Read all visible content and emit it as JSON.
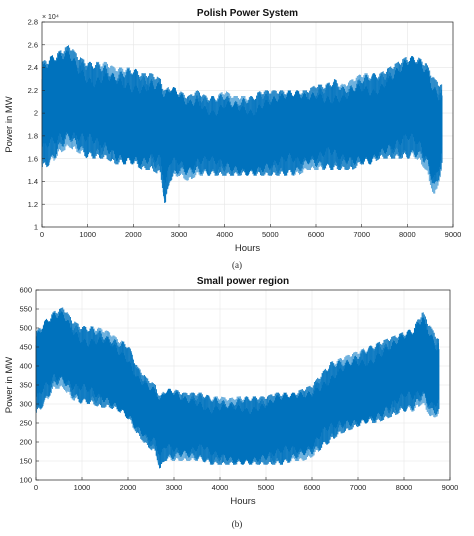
{
  "captions": {
    "a": "(a)",
    "b": "(b)"
  },
  "colors": {
    "series": "#0072bd",
    "series_light": "#4d9fd6",
    "grid": "#e6e6e6",
    "axis": "#262626"
  },
  "chart_data": [
    {
      "type": "line",
      "title": "Polish Power System",
      "xlabel": "Hours",
      "ylabel": "Power in MW",
      "y_exponent_label": "× 10⁴",
      "xlim": [
        0,
        9000
      ],
      "ylim": [
        1.0,
        2.8
      ],
      "y_scale_factor": 10000,
      "xticks": [
        0,
        1000,
        2000,
        3000,
        4000,
        5000,
        6000,
        7000,
        8000,
        9000
      ],
      "yticks": [
        1,
        1.2,
        1.4,
        1.6,
        1.8,
        2,
        2.2,
        2.4,
        2.6,
        2.8
      ],
      "grid": true,
      "series": [
        {
          "x": [
            0,
            200,
            400,
            600,
            800,
            1000,
            1200,
            1400,
            1600,
            1800,
            2000,
            2200,
            2400,
            2600,
            2700,
            2800,
            3000,
            3200,
            3400,
            3600,
            3800,
            4000,
            4200,
            4400,
            4600,
            4800,
            5000,
            5200,
            5400,
            5600,
            5800,
            6000,
            6200,
            6400,
            6600,
            6800,
            7000,
            7200,
            7400,
            7600,
            7800,
            8000,
            8200,
            8400,
            8600,
            8760
          ],
          "max": [
            2.45,
            2.5,
            2.55,
            2.6,
            2.5,
            2.45,
            2.45,
            2.45,
            2.4,
            2.4,
            2.4,
            2.35,
            2.35,
            2.3,
            2.2,
            2.25,
            2.2,
            2.15,
            2.2,
            2.15,
            2.15,
            2.2,
            2.15,
            2.15,
            2.15,
            2.2,
            2.2,
            2.2,
            2.2,
            2.2,
            2.2,
            2.25,
            2.25,
            2.3,
            2.25,
            2.3,
            2.35,
            2.35,
            2.35,
            2.4,
            2.45,
            2.5,
            2.5,
            2.45,
            2.3,
            2.25
          ],
          "min": [
            1.5,
            1.55,
            1.65,
            1.7,
            1.65,
            1.6,
            1.6,
            1.6,
            1.55,
            1.55,
            1.55,
            1.5,
            1.5,
            1.45,
            1.15,
            1.4,
            1.45,
            1.4,
            1.45,
            1.45,
            1.45,
            1.45,
            1.45,
            1.45,
            1.45,
            1.45,
            1.45,
            1.45,
            1.45,
            1.45,
            1.5,
            1.5,
            1.5,
            1.5,
            1.5,
            1.5,
            1.55,
            1.55,
            1.6,
            1.6,
            1.6,
            1.6,
            1.6,
            1.5,
            1.25,
            1.5
          ]
        }
      ]
    },
    {
      "type": "line",
      "title": "Small power region",
      "xlabel": "Hours",
      "ylabel": "Power in MW",
      "xlim": [
        0,
        9000
      ],
      "ylim": [
        100,
        600
      ],
      "xticks": [
        0,
        1000,
        2000,
        3000,
        4000,
        5000,
        6000,
        7000,
        8000,
        9000
      ],
      "yticks": [
        100,
        150,
        200,
        250,
        300,
        350,
        400,
        450,
        500,
        550,
        600
      ],
      "grid": true,
      "series": [
        {
          "x": [
            0,
            200,
            400,
            600,
            800,
            1000,
            1200,
            1400,
            1600,
            1800,
            2000,
            2200,
            2400,
            2600,
            2700,
            2800,
            3000,
            3200,
            3400,
            3600,
            3800,
            4000,
            4200,
            4400,
            4600,
            4800,
            5000,
            5200,
            5400,
            5600,
            5800,
            6000,
            6200,
            6400,
            6600,
            6800,
            7000,
            7200,
            7400,
            7600,
            7800,
            8000,
            8200,
            8400,
            8600,
            8760
          ],
          "max": [
            490,
            520,
            545,
            555,
            520,
            505,
            505,
            500,
            490,
            470,
            460,
            400,
            370,
            350,
            320,
            340,
            340,
            330,
            330,
            330,
            320,
            320,
            315,
            320,
            320,
            320,
            320,
            330,
            330,
            330,
            340,
            350,
            380,
            410,
            420,
            430,
            440,
            450,
            460,
            470,
            480,
            490,
            500,
            545,
            500,
            470
          ],
          "min": [
            270,
            300,
            340,
            340,
            310,
            300,
            300,
            290,
            290,
            280,
            260,
            220,
            190,
            170,
            120,
            150,
            150,
            150,
            150,
            150,
            140,
            140,
            140,
            140,
            140,
            140,
            140,
            140,
            140,
            150,
            150,
            160,
            180,
            200,
            220,
            230,
            240,
            250,
            250,
            260,
            270,
            280,
            280,
            300,
            260,
            270
          ]
        }
      ]
    }
  ]
}
